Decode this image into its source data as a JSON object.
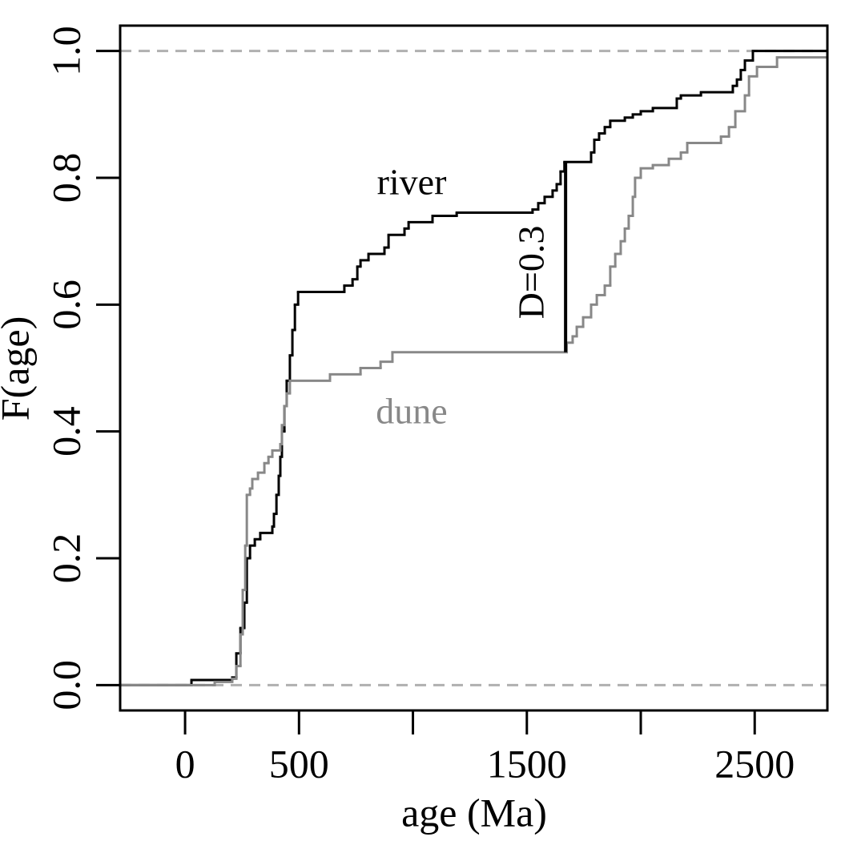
{
  "chart_data": {
    "type": "step",
    "xlabel": "age (Ma)",
    "ylabel": "F(age)",
    "xlim": [
      -285,
      2819
    ],
    "ylim": [
      -0.04,
      1.04
    ],
    "xticks": [
      0,
      500,
      {
        "value": 1000,
        "label": null
      },
      1500,
      {
        "value": 2000,
        "label": null
      },
      2500
    ],
    "yticks": [
      {
        "value": 0,
        "label": "0.0"
      },
      0.2,
      0.4,
      0.6,
      0.8,
      {
        "value": 1,
        "label": "1.0"
      }
    ],
    "hlines": [
      0,
      1
    ],
    "hline_color": "#b0b0b0",
    "series": [
      {
        "name": "river",
        "color": "#000000",
        "x": [
          -285,
          28,
          207,
          225,
          243,
          260,
          271,
          285,
          306,
          330,
          383,
          390,
          401,
          411,
          418,
          425,
          436,
          446,
          460,
          471,
          482,
          496,
          699,
          735,
          756,
          770,
          805,
          875,
          893,
          963,
          981,
          1086,
          1192,
          1525,
          1550,
          1578,
          1613,
          1631,
          1648,
          1665,
          1782,
          1796,
          1817,
          1842,
          1866,
          1930,
          1965,
          2000,
          2053,
          2158,
          2176,
          2264,
          2404,
          2422,
          2439,
          2457,
          2492
        ],
        "values": [
          0,
          0.008,
          0.012,
          0.05,
          0.09,
          0.13,
          0.2,
          0.22,
          0.23,
          0.24,
          0.25,
          0.27,
          0.3,
          0.33,
          0.36,
          0.4,
          0.44,
          0.48,
          0.52,
          0.56,
          0.6,
          0.62,
          0.63,
          0.64,
          0.66,
          0.67,
          0.68,
          0.69,
          0.71,
          0.72,
          0.73,
          0.74,
          0.745,
          0.75,
          0.76,
          0.77,
          0.78,
          0.79,
          0.81,
          0.825,
          0.84,
          0.86,
          0.87,
          0.88,
          0.89,
          0.895,
          0.9,
          0.905,
          0.91,
          0.925,
          0.93,
          0.935,
          0.945,
          0.955,
          0.97,
          0.985,
          1
        ]
      },
      {
        "name": "dune",
        "color": "#888888",
        "x": [
          -285,
          130,
          207,
          225,
          243,
          253,
          264,
          271,
          285,
          295,
          320,
          348,
          366,
          383,
          418,
          425,
          436,
          446,
          460,
          636,
          770,
          858,
          910,
          1675,
          1701,
          1719,
          1747,
          1782,
          1807,
          1842,
          1866,
          1888,
          1912,
          1930,
          1947,
          1965,
          1975,
          2000,
          2053,
          2123,
          2176,
          2204,
          2352,
          2387,
          2415,
          2457,
          2475,
          2510,
          2598
        ],
        "values": [
          0,
          0.005,
          0.01,
          0.03,
          0.08,
          0.15,
          0.22,
          0.3,
          0.31,
          0.325,
          0.335,
          0.35,
          0.36,
          0.37,
          0.38,
          0.41,
          0.44,
          0.46,
          0.48,
          0.49,
          0.5,
          0.51,
          0.525,
          0.54,
          0.55,
          0.565,
          0.58,
          0.6,
          0.615,
          0.63,
          0.66,
          0.68,
          0.7,
          0.72,
          0.74,
          0.77,
          0.8,
          0.815,
          0.82,
          0.83,
          0.84,
          0.855,
          0.865,
          0.88,
          0.905,
          0.93,
          0.96,
          0.975,
          0.99
        ]
      }
    ],
    "d_line": {
      "x": 1670,
      "y": [
        0.525,
        0.825
      ]
    },
    "annotations": [
      "river",
      "dune",
      "D=0.3"
    ]
  }
}
